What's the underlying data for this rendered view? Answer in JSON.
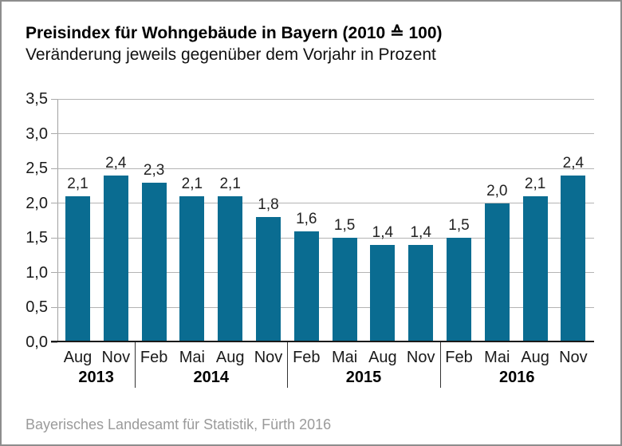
{
  "header": {
    "title": "Preisindex für Wohngebäude in Bayern (2010 ≙ 100)",
    "subtitle": "Veränderung jeweils gegenüber dem Vorjahr in Prozent"
  },
  "footer": {
    "source": "Bayerisches Landesamt für Statistik, Fürth 2016"
  },
  "colors": {
    "bar": "#0a6c91",
    "grid": "#b4b4b4",
    "y_axis_line": "#a0a0a0",
    "x_axis_line": "#1a1a1a",
    "separator": "#333333",
    "text": "#1a1a1a",
    "source_text": "#9a9a9a",
    "frame_border": "#8d8d8d"
  },
  "chart_data": {
    "type": "bar",
    "title": "Preisindex für Wohngebäude in Bayern (2010 ≙ 100)",
    "subtitle": "Veränderung jeweils gegenüber dem Vorjahr in Prozent",
    "categories": [
      "Aug 2013",
      "Nov 2013",
      "Feb 2014",
      "Mai 2014",
      "Aug 2014",
      "Nov 2014",
      "Feb 2015",
      "Mai 2015",
      "Aug 2015",
      "Nov 2015",
      "Feb 2016",
      "Mai 2016",
      "Aug 2016",
      "Nov 2016"
    ],
    "values": [
      2.1,
      2.4,
      2.3,
      2.1,
      2.1,
      1.8,
      1.6,
      1.5,
      1.4,
      1.4,
      1.5,
      2.0,
      2.1,
      2.4
    ],
    "groups": [
      {
        "year": "2013",
        "months": [
          "Aug",
          "Nov"
        ],
        "values": [
          2.1,
          2.4
        ]
      },
      {
        "year": "2014",
        "months": [
          "Feb",
          "Mai",
          "Aug",
          "Nov"
        ],
        "values": [
          2.3,
          2.1,
          2.1,
          1.8
        ]
      },
      {
        "year": "2015",
        "months": [
          "Feb",
          "Mai",
          "Aug",
          "Nov"
        ],
        "values": [
          1.6,
          1.5,
          1.4,
          1.4
        ]
      },
      {
        "year": "2016",
        "months": [
          "Feb",
          "Mai",
          "Aug",
          "Nov"
        ],
        "values": [
          1.5,
          2.0,
          2.1,
          2.4
        ]
      }
    ],
    "xlabel": "",
    "ylabel": "",
    "ylim": [
      0,
      3.5
    ],
    "ytick_step": 0.5,
    "ytick_labels": [
      "0,0",
      "0,5",
      "1,0",
      "1,5",
      "2,0",
      "2,5",
      "3,0",
      "3,5"
    ],
    "decimal_separator": ",",
    "grid": true,
    "legend": false,
    "bar_color": "#0a6c91",
    "value_labels_shown": true,
    "source": "Bayerisches Landesamt für Statistik, Fürth 2016"
  }
}
